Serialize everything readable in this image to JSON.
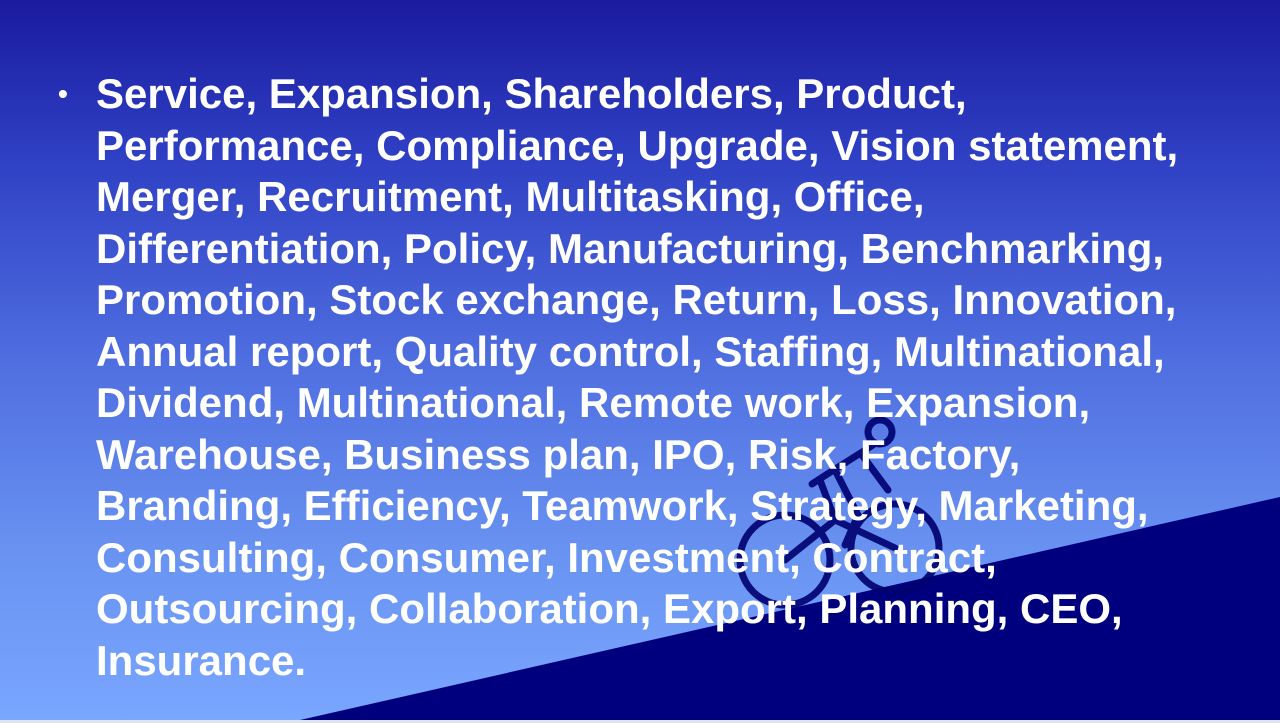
{
  "slide": {
    "bullet_symbol": "•",
    "lines": [
      "Service, Expansion, Shareholders, Product,",
      "Performance, Compliance, Upgrade, Vision statement,",
      "Merger, Recruitment, Multitasking, Office,",
      "Differentiation, Policy, Manufacturing, Benchmarking,",
      "Promotion, Stock exchange, Return, Loss, Innovation,",
      "Annual report, Quality control, Staffing, Multinational,",
      "Dividend, Multinational, Remote work, Expansion,",
      "Warehouse, Business plan, IPO, Risk, Factory,",
      "Branding, Efficiency, Teamwork, Strategy, Marketing,",
      "Consulting, Consumer, Investment, Contract,",
      "Outsourcing, Collaboration, Export, Planning, CEO,",
      "Insurance."
    ],
    "watermark_icon": "cyclist-icon"
  },
  "colors": {
    "background_top": "#1a1a9e",
    "background_bottom": "#79a6ff",
    "triangle": "#00007f",
    "text": "#ffffff"
  }
}
